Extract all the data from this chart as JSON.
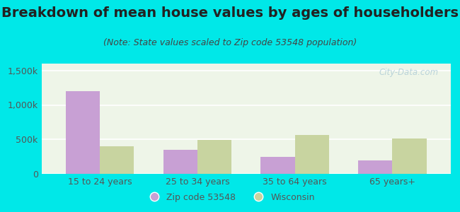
{
  "title": "Breakdown of mean house values by ages of householders",
  "subtitle": "(Note: State values scaled to Zip code 53548 population)",
  "categories": [
    "15 to 24 years",
    "25 to 34 years",
    "35 to 64 years",
    "65 years+"
  ],
  "zip_values": [
    1200000,
    350000,
    250000,
    200000
  ],
  "state_values": [
    400000,
    490000,
    560000,
    510000
  ],
  "zip_color": "#c8a0d4",
  "state_color": "#c8d4a0",
  "background_outer": "#00e8e8",
  "background_inner": "#eef5e8",
  "ylim": [
    0,
    1600000
  ],
  "yticks": [
    0,
    500000,
    1000000,
    1500000
  ],
  "ytick_labels": [
    "0",
    "500k",
    "1,000k",
    "1,500k"
  ],
  "bar_width": 0.35,
  "legend_zip_label": "Zip code 53548",
  "legend_state_label": "Wisconsin",
  "watermark": "City-Data.com",
  "title_fontsize": 14,
  "subtitle_fontsize": 9,
  "tick_fontsize": 9
}
